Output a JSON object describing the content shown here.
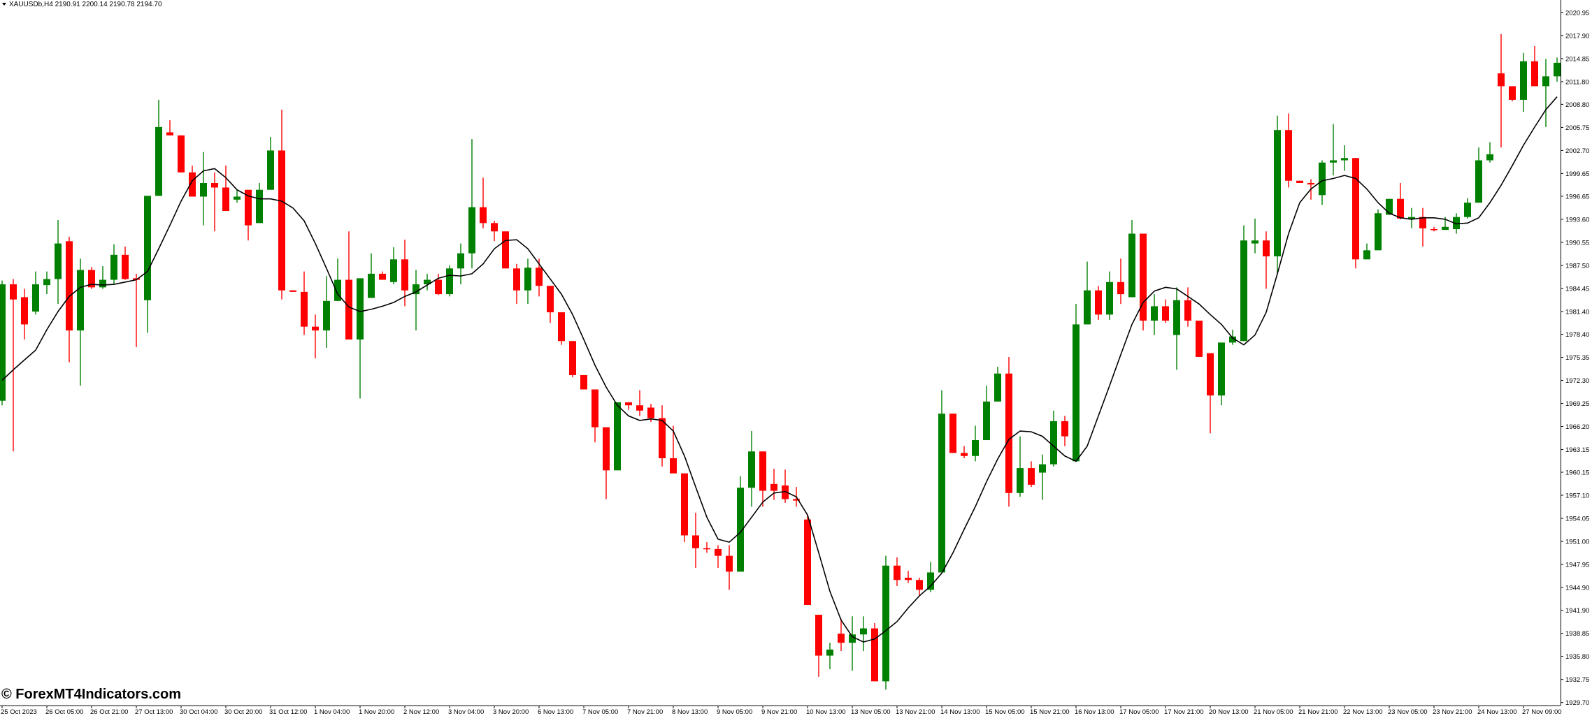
{
  "header": {
    "symbol_line": "XAUUSDb,H4  2190.91 2200.14 2190.78 2194.70"
  },
  "watermark": "© ForexMT4Indicators.com",
  "chart_data": {
    "type": "candlestick",
    "up_color": "#008000",
    "down_color": "#ff0000",
    "categories": [
      "25 Oct 2023",
      null,
      null,
      null,
      "26 Oct 05:00",
      null,
      null,
      null,
      "26 Oct 21:00",
      null,
      null,
      null,
      "27 Oct 13:00",
      null,
      null,
      null,
      "30 Oct 04:00",
      null,
      null,
      null,
      "30 Oct 20:00",
      null,
      null,
      null,
      "31 Oct 12:00",
      null,
      null,
      null,
      "1 Nov 04:00",
      null,
      null,
      null,
      "1 Nov 20:00",
      null,
      null,
      null,
      "2 Nov 12:00",
      null,
      null,
      null,
      "3 Nov 04:00",
      null,
      null,
      null,
      "3 Nov 20:00",
      null,
      null,
      null,
      "6 Nov 13:00",
      null,
      null,
      null,
      "7 Nov 05:00",
      null,
      null,
      null,
      "7 Nov 21:00",
      null,
      null,
      null,
      "8 Nov 13:00",
      null,
      null,
      null,
      "9 Nov 05:00",
      null,
      null,
      null,
      "9 Nov 21:00",
      null,
      null,
      null,
      "10 Nov 13:00",
      null,
      null,
      null,
      "13 Nov 05:00",
      null,
      null,
      null,
      "13 Nov 21:00",
      null,
      null,
      null,
      "14 Nov 13:00",
      null,
      null,
      null,
      "15 Nov 05:00",
      null,
      null,
      null,
      "15 Nov 21:00",
      null,
      null,
      null,
      "16 Nov 13:00",
      null,
      null,
      null,
      "17 Nov 05:00",
      null,
      null,
      null,
      "17 Nov 21:00",
      null,
      null,
      null,
      "20 Nov 13:00",
      null,
      null,
      null,
      "21 Nov 05:00",
      null,
      null,
      null,
      "21 Nov 21:00",
      null,
      null,
      null,
      "22 Nov 13:00",
      null,
      null,
      null,
      "23 Nov 05:00",
      null,
      null,
      null,
      "23 Nov 21:00",
      null,
      null,
      null,
      "24 Nov 13:00",
      null,
      null,
      null,
      "27 Nov 09:00",
      null,
      null,
      null
    ],
    "open": [
      1969.6,
      1985.0,
      1983.3,
      1981.4,
      1984.9,
      1985.7,
      1990.7,
      1978.9,
      1986.9,
      1984.6,
      1985.6,
      1988.9,
      1985.8,
      1982.9,
      1996.7,
      2005.1,
      2004.7,
      1999.8,
      1996.6,
      1998.4,
      1997.8,
      1996.2,
      1997.5,
      1993.1,
      1997.5,
      2002.7,
      1984.2,
      1984.0,
      1979.4,
      1978.9,
      1982.8,
      1985.6,
      1977.7,
      1983.2,
      1986.4,
      1985.3,
      1988.3,
      1983.7,
      1985.0,
      1985.6,
      1983.7,
      1987.1,
      1989.1,
      1995.2,
      1993.1,
      1992.0,
      1987.1,
      1984.2,
      1987.2,
      1984.8,
      1981.3,
      1977.5,
      1973.0,
      1971.1,
      1966.1,
      1960.4,
      1969.4,
      1969.0,
      1968.7,
      1967.3,
      1962.0,
      1960.0,
      1951.8,
      1950.1,
      1950.0,
      1949.1,
      1947.0,
      1958.1,
      1962.9,
      1958.6,
      1958.4,
      1956.6,
      1953.9,
      1941.3,
      1935.9,
      1938.8,
      1937.6,
      1938.7,
      1939.5,
      1932.5,
      1947.8,
      1946.2,
      1945.9,
      1944.6,
      1946.9,
      1967.9,
      1962.7,
      1962.3,
      1964.4,
      1969.5,
      1973.2,
      1957.4,
      1960.7,
      1960.1,
      1961.2,
      1966.9,
      1961.6,
      1979.7,
      1984.2,
      1981.0,
      1985.3,
      1983.3,
      1991.7,
      1980.2,
      1982.1,
      1978.3,
      1982.9,
      1980.2,
      1975.9,
      1970.3,
      1977.3,
      1977.5,
      1990.4,
      1990.8,
      1988.7,
      2005.4,
      1998.7,
      1998.4,
      1996.8,
      2001.1,
      2001.4,
      2001.7,
      1988.3,
      1989.5,
      1994.2,
      1996.3,
      1993.6,
      1993.9,
      1992.3,
      1992.2,
      1992.3,
      1993.9,
      1995.8,
      2001.4,
      2012.9,
      2011.2,
      2009.4,
      2014.5,
      2011.2,
      2012.5
    ],
    "high": [
      1985.5,
      1985.7,
      1984.4,
      1986.7,
      1986.7,
      1993.5,
      1991.3,
      1988.4,
      1987.3,
      1987.4,
      1990.3,
      1990.0,
      1986.4,
      1996.7,
      2009.4,
      2006.7,
      2004.7,
      2000.7,
      2002.5,
      1999.8,
      2000.7,
      1997.5,
      1997.5,
      1998.4,
      2004.5,
      2008.1,
      1984.2,
      1986.7,
      1981.0,
      1986.1,
      1988.4,
      1992.0,
      1985.8,
      1989.1,
      1986.7,
      1989.9,
      1990.9,
      1986.9,
      1986.4,
      1986.4,
      1987.5,
      1990.4,
      2004.2,
      1999.1,
      1993.4,
      1992.0,
      1987.7,
      1988.4,
      1988.4,
      1984.8,
      1981.3,
      1977.5,
      1973.0,
      1971.1,
      1966.1,
      1969.4,
      1969.4,
      1971.0,
      1969.2,
      1969.0,
      1966.3,
      1960.0,
      1954.8,
      1950.9,
      1950.5,
      1950.5,
      1959.6,
      1965.6,
      1962.9,
      1960.6,
      1960.5,
      1958.2,
      1954.5,
      1941.3,
      1937.6,
      1940.8,
      1941.1,
      1941.1,
      1940.2,
      1949.1,
      1948.9,
      1947.1,
      1946.2,
      1948.3,
      1971.0,
      1967.9,
      1963.6,
      1966.3,
      1971.6,
      1974.1,
      1975.4,
      1964.9,
      1961.6,
      1962.5,
      1968.3,
      1967.6,
      1982.4,
      1988.0,
      1984.8,
      1986.7,
      1988.4,
      1993.5,
      1991.7,
      1983.7,
      1983.0,
      1984.6,
      1984.6,
      1980.2,
      1975.9,
      1977.3,
      1979.0,
      1992.8,
      1993.7,
      1992.0,
      2007.3,
      2007.6,
      1998.7,
      1998.9,
      2001.4,
      2006.2,
      2003.4,
      2001.7,
      1990.4,
      1994.9,
      1996.3,
      1998.4,
      1995.1,
      1995.1,
      1992.6,
      1993.9,
      1994.4,
      1996.4,
      2003.1,
      2003.8,
      2018.1,
      2011.2,
      2015.6,
      2016.5,
      2014.8,
      2015.0
    ],
    "low": [
      1969.0,
      1962.9,
      1977.7,
      1981.0,
      1983.7,
      1982.4,
      1974.7,
      1971.6,
      1984.4,
      1984.4,
      1985.0,
      1985.6,
      1976.7,
      1978.6,
      1996.7,
      2004.7,
      1999.8,
      1996.6,
      1992.8,
      1992.0,
      1994.7,
      1995.8,
      1990.8,
      1993.1,
      1997.5,
      1983.0,
      1984.0,
      1978.3,
      1975.2,
      1976.6,
      1982.8,
      1977.7,
      1969.9,
      1983.2,
      1985.6,
      1985.0,
      1982.1,
      1978.9,
      1984.2,
      1983.6,
      1983.4,
      1985.0,
      1987.1,
      1992.4,
      1990.7,
      1987.1,
      1982.4,
      1982.4,
      1983.4,
      1979.9,
      1977.0,
      1972.7,
      1971.1,
      1964.1,
      1956.6,
      1960.4,
      1968.4,
      1967.6,
      1966.8,
      1960.9,
      1960.0,
      1950.9,
      1947.5,
      1949.5,
      1947.5,
      1944.6,
      1947.0,
      1955.6,
      1955.6,
      1956.5,
      1956.1,
      1955.6,
      1942.6,
      1933.1,
      1934.1,
      1936.5,
      1933.9,
      1936.5,
      1932.5,
      1931.4,
      1945.1,
      1945.5,
      1943.8,
      1944.3,
      1946.9,
      1962.7,
      1962.0,
      1961.6,
      1964.4,
      1969.5,
      1955.6,
      1956.9,
      1958.2,
      1956.5,
      1960.9,
      1963.6,
      1961.6,
      1979.7,
      1980.3,
      1980.3,
      1982.4,
      1983.3,
      1978.9,
      1978.3,
      1979.9,
      1973.7,
      1979.4,
      1975.4,
      1965.3,
      1969.0,
      1977.0,
      1977.5,
      1989.1,
      1984.4,
      1986.4,
      1997.8,
      1998.4,
      1996.2,
      1995.5,
      1999.4,
      2000.0,
      1987.1,
      1988.3,
      1989.5,
      1994.2,
      1993.6,
      1992.4,
      1990.0,
      1992.0,
      1992.2,
      1991.7,
      1993.7,
      1995.8,
      2001.1,
      2003.1,
      2009.2,
      2007.8,
      2011.2,
      2005.8,
      2011.8
    ],
    "close": [
      1985.0,
      1983.0,
      1979.7,
      1985.0,
      1985.7,
      1990.4,
      1978.9,
      1986.9,
      1984.6,
      1985.6,
      1988.9,
      1985.7,
      1985.6,
      1996.7,
      2005.8,
      2004.7,
      1999.8,
      1996.6,
      1998.4,
      1997.8,
      1994.7,
      1996.6,
      1992.8,
      1997.5,
      2002.7,
      1984.2,
      1984.0,
      1979.4,
      1978.9,
      1982.8,
      1985.6,
      1977.7,
      1985.8,
      1986.4,
      1985.6,
      1988.3,
      1984.2,
      1985.0,
      1985.6,
      1983.7,
      1987.1,
      1989.1,
      1995.2,
      1993.1,
      1992.0,
      1987.1,
      1984.2,
      1987.2,
      1984.8,
      1981.3,
      1977.5,
      1973.0,
      1971.1,
      1966.1,
      1960.4,
      1969.4,
      1969.0,
      1968.3,
      1967.3,
      1962.0,
      1960.0,
      1951.8,
      1950.1,
      1950.0,
      1949.1,
      1947.0,
      1958.1,
      1962.9,
      1957.7,
      1957.7,
      1956.6,
      1956.4,
      1942.6,
      1935.9,
      1936.7,
      1937.6,
      1938.7,
      1939.5,
      1932.5,
      1947.8,
      1945.9,
      1945.9,
      1944.6,
      1946.9,
      1967.9,
      1962.7,
      1962.3,
      1964.4,
      1969.5,
      1973.2,
      1957.4,
      1960.7,
      1958.5,
      1961.2,
      1966.9,
      1964.9,
      1979.7,
      1984.2,
      1981.0,
      1985.3,
      1983.7,
      1991.7,
      1980.2,
      1982.1,
      1980.2,
      1982.9,
      1980.2,
      1975.4,
      1970.3,
      1977.3,
      1978.1,
      1990.8,
      1990.8,
      1988.7,
      2005.4,
      1998.7,
      1998.4,
      1998.2,
      2001.1,
      2001.4,
      2001.7,
      1988.3,
      1989.5,
      1994.4,
      1996.3,
      1993.7,
      1993.9,
      1992.4,
      1992.2,
      1992.6,
      1993.9,
      1995.8,
      2001.4,
      2002.2,
      2011.2,
      2009.4,
      2014.5,
      2011.2,
      2012.5,
      2014.3
    ],
    "moving_average": {
      "color": "#000000",
      "values": [
        1972.3,
        1973.7,
        1975.0,
        1976.3,
        1979.0,
        1981.4,
        1983.4,
        1984.6,
        1985.0,
        1984.9,
        1985.0,
        1985.3,
        1985.6,
        1986.7,
        1989.7,
        1992.8,
        1996.0,
        1998.7,
        2000.0,
        2000.3,
        1999.1,
        1997.5,
        1996.7,
        1996.3,
        1996.3,
        1996.0,
        1995.1,
        1993.4,
        1990.4,
        1987.1,
        1983.7,
        1982.0,
        1981.4,
        1981.7,
        1982.1,
        1982.6,
        1983.4,
        1984.0,
        1984.9,
        1985.8,
        1986.2,
        1986.1,
        1986.4,
        1987.7,
        1989.7,
        1990.8,
        1990.9,
        1989.7,
        1987.7,
        1985.7,
        1983.7,
        1981.0,
        1977.7,
        1974.3,
        1971.4,
        1969.0,
        1967.6,
        1967.0,
        1967.2,
        1967.0,
        1965.6,
        1962.3,
        1958.2,
        1954.2,
        1951.3,
        1950.9,
        1952.2,
        1954.2,
        1956.2,
        1957.4,
        1957.6,
        1956.9,
        1954.5,
        1949.5,
        1944.4,
        1940.6,
        1938.4,
        1937.7,
        1938.1,
        1939.2,
        1940.4,
        1942.2,
        1943.8,
        1945.1,
        1946.8,
        1949.5,
        1952.6,
        1955.6,
        1958.9,
        1961.9,
        1964.5,
        1965.6,
        1965.5,
        1964.9,
        1963.6,
        1962.3,
        1961.6,
        1963.6,
        1967.6,
        1971.6,
        1975.7,
        1979.7,
        1982.6,
        1984.1,
        1984.6,
        1984.4,
        1983.4,
        1982.4,
        1981.0,
        1979.7,
        1977.9,
        1977.0,
        1978.3,
        1981.3,
        1986.4,
        1991.7,
        1995.8,
        1997.6,
        1998.7,
        1999.0,
        1999.4,
        1999.0,
        1997.6,
        1995.8,
        1994.4,
        1993.8,
        1993.6,
        1993.8,
        1993.8,
        1993.6,
        1993.0,
        1993.1,
        1993.8,
        1995.8,
        1998.1,
        2000.7,
        2003.4,
        2005.8,
        2008.1,
        2009.8
      ]
    },
    "ylim": [
      1929.3,
      2022.6
    ],
    "yticks": [
      2020.95,
      {
        "value": 2017.9,
        "label": "2017.90"
      },
      2014.85,
      {
        "value": 2011.8,
        "label": "2011.80"
      },
      {
        "value": 2008.8,
        "label": "2008.80"
      },
      2005.75,
      {
        "value": 2002.7,
        "label": "2002.70"
      },
      1999.65,
      1996.65,
      {
        "value": 1993.6,
        "label": "1993.60"
      },
      1990.55,
      {
        "value": 1987.5,
        "label": "1987.50"
      },
      1984.45,
      {
        "value": 1981.4,
        "label": "1981.40"
      },
      {
        "value": 1978.4,
        "label": "1978.40"
      },
      1975.35,
      {
        "value": 1972.3,
        "label": "1972.30"
      },
      1969.25,
      {
        "value": 1966.2,
        "label": "1966.20"
      },
      1963.15,
      1960.15,
      {
        "value": 1957.1,
        "label": "1957.10"
      },
      1954.05,
      {
        "value": 1951,
        "label": "1951.00"
      },
      1947.95,
      {
        "value": 1944.9,
        "label": "1944.90"
      },
      {
        "value": 1941.9,
        "label": "1941.90"
      },
      1938.85,
      {
        "value": 1935.8,
        "label": "1935.80"
      },
      1932.75,
      {
        "value": 1929.7,
        "label": "1929.70"
      }
    ]
  }
}
